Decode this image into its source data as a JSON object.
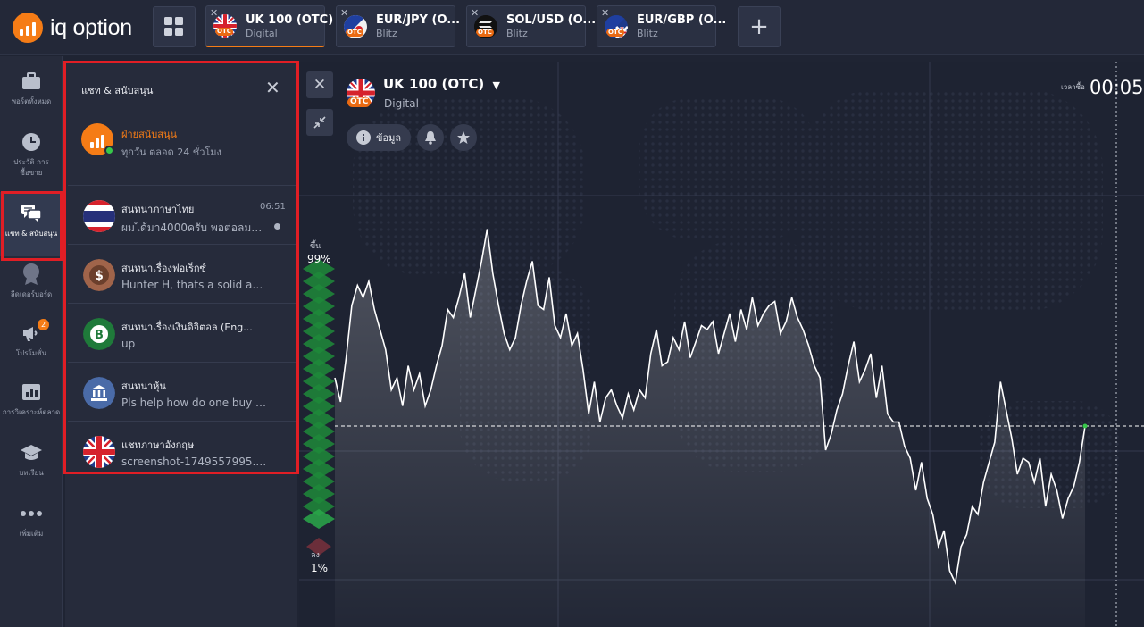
{
  "brand": {
    "logo_text": "iq option",
    "accent": "#f57c16"
  },
  "tabs": [
    {
      "name": "UK 100 (OTC)",
      "type": "Digital",
      "flag": "uk",
      "active": true
    },
    {
      "name": "EUR/JPY (O...",
      "type": "Blitz",
      "flag": "eu-jp",
      "active": false
    },
    {
      "name": "SOL/USD (O...",
      "type": "Blitz",
      "flag": "sol",
      "active": false
    },
    {
      "name": "EUR/GBP (O...",
      "type": "Blitz",
      "flag": "eu-uk",
      "active": false
    }
  ],
  "otc_tag": "OTC",
  "rail": [
    {
      "label": "พอร์ตทั้งหมด",
      "icon": "briefcase-icon"
    },
    {
      "label": "ประวัติ การซื้อขาย",
      "icon": "clock-icon"
    },
    {
      "label": "แชท & สนับสนุน",
      "icon": "chat-icon",
      "selected": true
    },
    {
      "label": "ลีดเดอร์บอร์ด",
      "icon": "medal-icon"
    },
    {
      "label": "โปรโมชั่น",
      "icon": "megaphone-icon",
      "badge": "2"
    },
    {
      "label": "การวิเคราะห์ตลาด",
      "icon": "bar-chart-icon"
    },
    {
      "label": "บทเรียน",
      "icon": "graduation-cap-icon"
    },
    {
      "label": "เพิ่มเติม",
      "icon": "more-icon"
    }
  ],
  "chat_panel": {
    "title": "แชท & สนับสนุน",
    "support": {
      "name": "ฝ่ายสนับสนุน",
      "sub": "ทุกวัน ตลอด 24 ชั่วโมง"
    },
    "chats": [
      {
        "name": "สนทนาภาษาไทย",
        "message": "ผมได้มา4000ครับ พอต่อลมหายใ...",
        "time": "06:51",
        "unread": true,
        "avatar": "thai-flag"
      },
      {
        "name": "สนทนาเรื่องฟอเร็กซ์",
        "message": "Hunter H, thats a solid anal...",
        "time": "",
        "avatar": "dollar-coin"
      },
      {
        "name": "สนทนาเรื่องเงินดิจิตอล (Eng...",
        "message": "up",
        "time": "",
        "avatar": "bitcoin"
      },
      {
        "name": "สนทนาหุ้น",
        "message": "Pls help how do one buy o...",
        "time": "",
        "avatar": "bank"
      },
      {
        "name": "แชทภาษาอังกฤษ",
        "message": "screenshot-1749557995.p...",
        "time": "",
        "avatar": "uk-flag"
      }
    ]
  },
  "asset": {
    "title": "UK 100 (OTC)",
    "subtitle": "Digital",
    "info_label": "ข้อมูล",
    "time_label": "เวลาซื้อ",
    "time_value": "00:05"
  },
  "sentiment": {
    "up_label": "ขึ้น",
    "up_pct": "99%",
    "down_label": "ลง",
    "down_pct": "1%"
  },
  "chart_data": {
    "type": "line",
    "series": [
      {
        "values": [
          60,
          30,
          85,
          150,
          175,
          160,
          180,
          145,
          120,
          95,
          45,
          60,
          25,
          75,
          45,
          65,
          25,
          45,
          75,
          100,
          145,
          135,
          160,
          190,
          135,
          170,
          205,
          245,
          190,
          150,
          115,
          95,
          110,
          150,
          180,
          205,
          150,
          145,
          185,
          125,
          110,
          140,
          100,
          115,
          70,
          15,
          55,
          5,
          35,
          45,
          25,
          10,
          40,
          20,
          45,
          35,
          90,
          120,
          75,
          80,
          110,
          95,
          130,
          85,
          105,
          125,
          120,
          130,
          90,
          115,
          140,
          105,
          145,
          120,
          160,
          125,
          140,
          150,
          155,
          115,
          130,
          160,
          135,
          120,
          100,
          75,
          60,
          -30,
          -10,
          20,
          40,
          75,
          105,
          55,
          70,
          90,
          35,
          75,
          15,
          5,
          5,
          -25,
          -40,
          -80,
          -45,
          -90,
          -110,
          -150,
          -130,
          -180,
          -195,
          -150,
          -135,
          -100,
          -110,
          -70,
          -45,
          -20,
          55,
          20,
          -15,
          -60,
          -40,
          -45,
          -70,
          -40,
          -100,
          -60,
          -80,
          -115,
          -90,
          -75,
          -45,
          0
        ]
      }
    ],
    "reference_level": 0
  }
}
